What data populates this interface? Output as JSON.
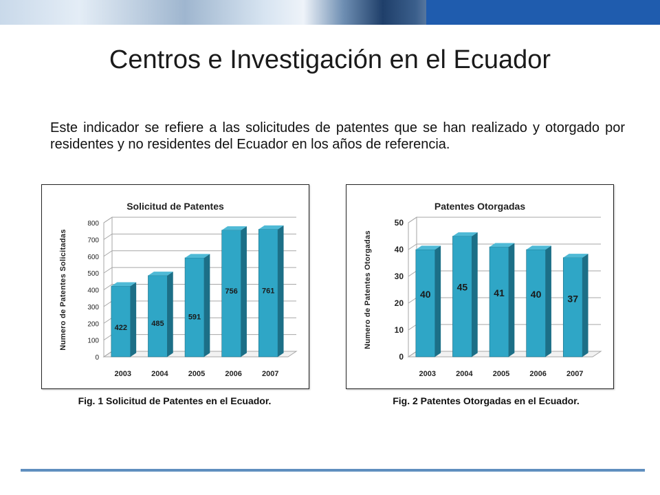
{
  "slide": {
    "title": "Centros e Investigación en el Ecuador",
    "intro": "Este indicador se refiere a las solicitudes de patentes que se han realizado y otorgado por residentes y no residentes del Ecuador en los años de referencia.",
    "caption1": "Fig. 1 Solicitud de Patentes en el Ecuador.",
    "caption2": "Fig. 2  Patentes Otorgadas en el Ecuador."
  },
  "colors": {
    "bar_front": "#2fa6c6",
    "bar_side": "#1c6f87",
    "bar_top": "#4fbad6",
    "grid": "#a6a6a6",
    "banner_box": "#1f5cae",
    "rule": "#5f8fbf"
  },
  "chart_data": [
    {
      "type": "bar",
      "title": "Solicitud de Patentes",
      "ylabel": "Numero de Patentes Solicitadas",
      "xlabel": "",
      "categories": [
        "2003",
        "2004",
        "2005",
        "2006",
        "2007"
      ],
      "values": [
        422,
        485,
        591,
        756,
        761
      ],
      "ylim": [
        0,
        800
      ],
      "yticks": [
        0,
        100,
        200,
        300,
        400,
        500,
        600,
        700,
        800
      ],
      "grid": true,
      "style": "3d-column"
    },
    {
      "type": "bar",
      "title": "Patentes Otorgadas",
      "ylabel": "Numero de Patentes Otorgadas",
      "xlabel": "",
      "categories": [
        "2003",
        "2004",
        "2005",
        "2006",
        "2007"
      ],
      "values": [
        40,
        45,
        41,
        40,
        37
      ],
      "ylim": [
        0,
        50
      ],
      "yticks": [
        0,
        10,
        20,
        30,
        40,
        50
      ],
      "grid": true,
      "style": "3d-column"
    }
  ]
}
